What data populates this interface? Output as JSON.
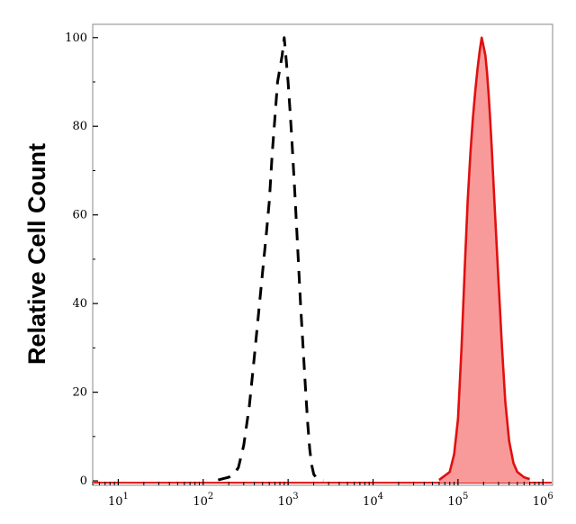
{
  "chart_data": {
    "type": "area",
    "title": "",
    "xlabel": "",
    "ylabel": "Relative Cell Count",
    "x_scale": "log",
    "xlim": [
      5,
      1300000
    ],
    "ylim": [
      -1,
      103
    ],
    "x_tick_labels": [
      {
        "base": "10",
        "exp": "1",
        "value": 10
      },
      {
        "base": "10",
        "exp": "2",
        "value": 100
      },
      {
        "base": "10",
        "exp": "3",
        "value": 1000
      },
      {
        "base": "10",
        "exp": "4",
        "value": 10000
      },
      {
        "base": "10",
        "exp": "5",
        "value": 100000
      },
      {
        "base": "10",
        "exp": "6",
        "value": 1000000
      }
    ],
    "y_ticks": [
      0,
      20,
      40,
      60,
      80,
      100
    ],
    "grid": false,
    "legend": "none",
    "series": [
      {
        "style": "dashed",
        "color": "#000000",
        "points": [
          [
            150,
            0.2
          ],
          [
            200,
            0.8
          ],
          [
            230,
            1.5
          ],
          [
            260,
            3
          ],
          [
            300,
            8
          ],
          [
            350,
            17
          ],
          [
            400,
            28
          ],
          [
            450,
            38
          ],
          [
            500,
            47
          ],
          [
            550,
            55
          ],
          [
            600,
            63
          ],
          [
            650,
            74
          ],
          [
            700,
            82
          ],
          [
            750,
            90
          ],
          [
            800,
            93
          ],
          [
            850,
            96
          ],
          [
            900,
            100
          ],
          [
            950,
            95
          ],
          [
            1000,
            90
          ],
          [
            1050,
            84
          ],
          [
            1100,
            78
          ],
          [
            1200,
            65
          ],
          [
            1300,
            52
          ],
          [
            1400,
            40
          ],
          [
            1500,
            30
          ],
          [
            1600,
            21
          ],
          [
            1700,
            13
          ],
          [
            1800,
            7
          ],
          [
            1900,
            3.5
          ],
          [
            2000,
            1.5
          ],
          [
            2200,
            0.4
          ],
          [
            2600,
            0.1
          ]
        ]
      },
      {
        "style": "filled",
        "color": "#e01010",
        "fill": "#f99a9a",
        "points": [
          [
            60000,
            0.2
          ],
          [
            80000,
            2
          ],
          [
            90000,
            6
          ],
          [
            100000,
            14
          ],
          [
            110000,
            30
          ],
          [
            120000,
            48
          ],
          [
            130000,
            63
          ],
          [
            140000,
            74
          ],
          [
            150000,
            82
          ],
          [
            160000,
            88
          ],
          [
            170000,
            93
          ],
          [
            180000,
            97
          ],
          [
            190000,
            100
          ],
          [
            200000,
            98
          ],
          [
            210000,
            96
          ],
          [
            220000,
            92
          ],
          [
            230000,
            87
          ],
          [
            240000,
            81
          ],
          [
            250000,
            75
          ],
          [
            270000,
            62
          ],
          [
            300000,
            45
          ],
          [
            330000,
            30
          ],
          [
            360000,
            18
          ],
          [
            400000,
            9
          ],
          [
            450000,
            4
          ],
          [
            500000,
            2
          ],
          [
            600000,
            0.8
          ],
          [
            700000,
            0.4
          ]
        ]
      }
    ],
    "baseline_color": "#e01010"
  }
}
